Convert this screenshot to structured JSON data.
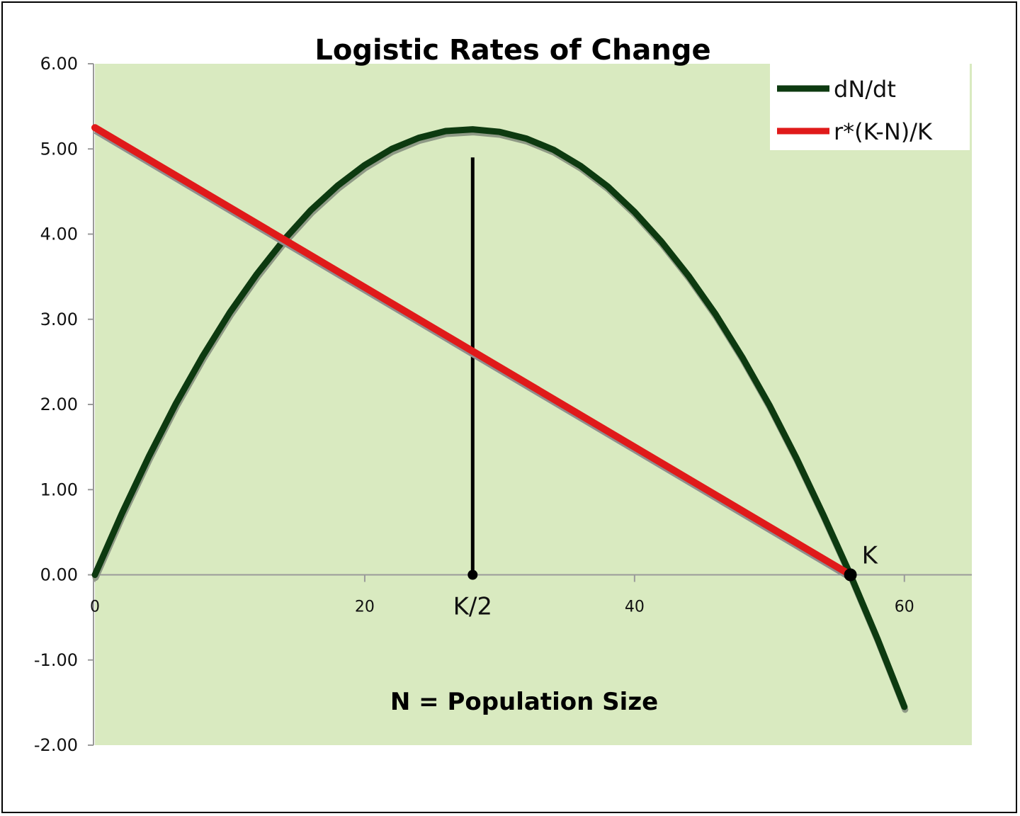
{
  "chart_data": {
    "type": "line",
    "title": "Logistic Rates of Change",
    "xlabel": "N = Population Size",
    "ylabel": "",
    "xlim": [
      0,
      65
    ],
    "ylim": [
      -2,
      6
    ],
    "x_ticks": [
      "0",
      "20",
      "40",
      "60"
    ],
    "x_tick_values": [
      0,
      20,
      40,
      60
    ],
    "y_ticks": [
      "6.00",
      "5.00",
      "4.00",
      "3.00",
      "2.00",
      "1.00",
      "0.00",
      "-1.00",
      "-2.00"
    ],
    "y_tick_values": [
      6,
      5,
      4,
      3,
      2,
      1,
      0,
      -1,
      -2
    ],
    "grid": false,
    "legend_position": "top-right",
    "background_color": "#d9eac0",
    "series": [
      {
        "name": "dN/dt",
        "color": "#0d3a10",
        "x": [
          0,
          2,
          4,
          6,
          8,
          10,
          12,
          14,
          16,
          18,
          20,
          22,
          24,
          26,
          28,
          30,
          32,
          34,
          36,
          38,
          40,
          42,
          44,
          46,
          48,
          50,
          52,
          54,
          56,
          58,
          60
        ],
        "y": [
          0,
          0.72,
          1.39,
          2.01,
          2.57,
          3.08,
          3.53,
          3.93,
          4.28,
          4.57,
          4.81,
          5.0,
          5.13,
          5.21,
          5.23,
          5.2,
          5.12,
          4.99,
          4.8,
          4.56,
          4.26,
          3.91,
          3.51,
          3.06,
          2.55,
          1.99,
          1.37,
          0.7,
          0.0,
          -0.75,
          -1.55
        ]
      },
      {
        "name": "r*(K-N)/K",
        "color": "#e01a1a",
        "x": [
          0,
          56
        ],
        "y": [
          5.25,
          0.0
        ]
      }
    ],
    "annotations": [
      {
        "text": "K/2",
        "x": 28,
        "y": 0
      },
      {
        "text": "K",
        "x": 56,
        "y": 0
      }
    ],
    "vertical_line": {
      "x": 28,
      "y_from": 0,
      "y_to": 4.9,
      "color": "#000000"
    }
  }
}
